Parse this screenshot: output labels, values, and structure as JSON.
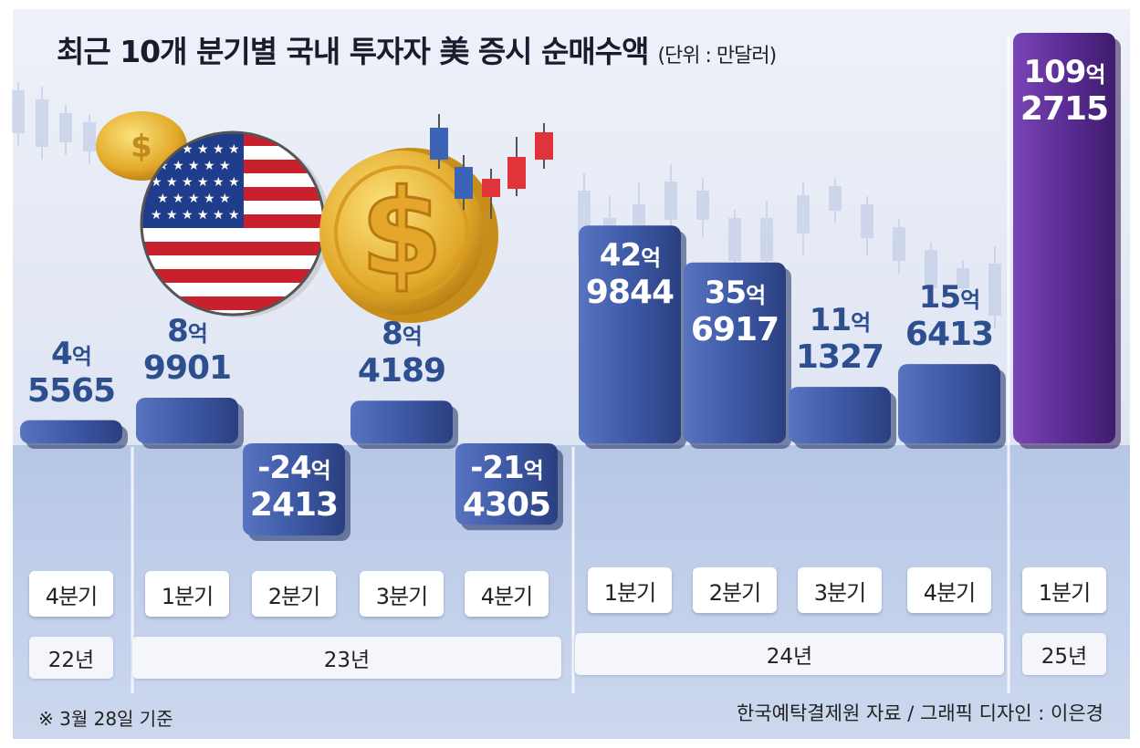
{
  "chart_data": {
    "type": "bar",
    "title": "최근 10개 분기별 국내 투자자 美 증시 순매수액",
    "unit": "(단위 : 만달러)",
    "categories": [
      "22년 4분기",
      "23년 1분기",
      "23년 2분기",
      "23년 3분기",
      "23년 4분기",
      "24년 1분기",
      "24년 2분기",
      "24년 3분기",
      "24년 4분기",
      "25년 1분기"
    ],
    "values": [
      45565,
      89901,
      -242413,
      84189,
      -214305,
      429844,
      356917,
      111327,
      156413,
      1092715
    ],
    "quarter_labels": [
      "4분기",
      "1분기",
      "2분기",
      "3분기",
      "4분기",
      "1분기",
      "2분기",
      "3분기",
      "4분기",
      "1분기"
    ],
    "value_labels": [
      {
        "line1": "4",
        "unit": "억",
        "line2": "5565"
      },
      {
        "line1": "8",
        "unit": "억",
        "line2": "9901"
      },
      {
        "line1": "-24",
        "unit": "억",
        "line2": "2413"
      },
      {
        "line1": "8",
        "unit": "억",
        "line2": "4189"
      },
      {
        "line1": "-21",
        "unit": "억",
        "line2": "4305"
      },
      {
        "line1": "42",
        "unit": "억",
        "line2": "9844"
      },
      {
        "line1": "35",
        "unit": "억",
        "line2": "6917"
      },
      {
        "line1": "11",
        "unit": "억",
        "line2": "1327"
      },
      {
        "line1": "15",
        "unit": "억",
        "line2": "6413"
      },
      {
        "line1": "109",
        "unit": "억",
        "line2": "2715"
      }
    ],
    "year_groups": [
      {
        "label": "22년",
        "start": 0,
        "end": 0
      },
      {
        "label": "23년",
        "start": 1,
        "end": 4
      },
      {
        "label": "24년",
        "start": 5,
        "end": 8
      },
      {
        "label": "25년",
        "start": 9,
        "end": 9
      }
    ],
    "highlight_index": 9
  },
  "footnote": "※ 3월 28일 기준",
  "source": "한국예탁결제원 자료 / 그래픽 디자인 : 이은경",
  "colors": {
    "bar": "#3e5aa6",
    "bar_highlight": "#5c2d96",
    "label_normal": "#2e4f8f",
    "label_highlight": "#ffffff",
    "label_negative": "#ffffff",
    "background_top": "#dfe5f1",
    "background_bottom": "#a7bbdf"
  },
  "icons": [
    "us-flag-coin-icon",
    "dollar-coin-icon",
    "candlestick-icon"
  ]
}
